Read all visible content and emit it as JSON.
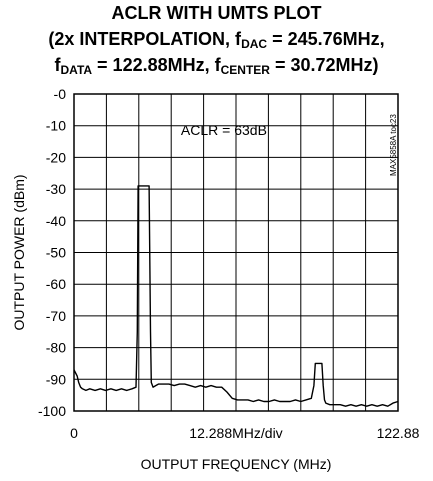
{
  "chart_data": {
    "type": "line",
    "title_lines": [
      [
        "ACLR WITH UMTS PLOT"
      ],
      [
        "(2x INTERPOLATION, f",
        "DAC",
        " = 245.76MHz,"
      ],
      [
        "f",
        "DATA",
        " = 122.88MHz, f",
        "CENTER",
        " = 30.72MHz)"
      ]
    ],
    "xlabel": "OUTPUT FREQUENCY (MHz)",
    "ylabel": "OUTPUT POWER (dBm)",
    "xlim": [
      0,
      122.88
    ],
    "ylim": [
      -100,
      0
    ],
    "x_tick_labels": [
      "0",
      "12.288MHz/div",
      "122.88"
    ],
    "y_tick_labels": [
      "-0",
      "-10",
      "-20",
      "-30",
      "-40",
      "-50",
      "-60",
      "-70",
      "-80",
      "-90",
      "-100"
    ],
    "grid": true,
    "annotation": "ACLR = 63dB",
    "side_label": "MAX5858A toc23",
    "series": [
      {
        "color": "#000000",
        "x": [
          0,
          0.6,
          1.2,
          1.8,
          2.5,
          3.2,
          4.5,
          6,
          8,
          10,
          12,
          14,
          16,
          18,
          20,
          22,
          23.5,
          24,
          24.3,
          25,
          26,
          27.5,
          28.5,
          29,
          29.3,
          30,
          31,
          32,
          34,
          36,
          38,
          40,
          42,
          44,
          46,
          48,
          50,
          52,
          54,
          56,
          58,
          60,
          62,
          64,
          66,
          68,
          70,
          72,
          74,
          76,
          78,
          80,
          82,
          84,
          86,
          88,
          90,
          91,
          91.5,
          92,
          93,
          94,
          94.5,
          95,
          95.5,
          97,
          99,
          101,
          103,
          105,
          107,
          109,
          111,
          113,
          115,
          117,
          119,
          121,
          122.88
        ],
        "y": [
          -87,
          -88,
          -89,
          -91,
          -92.5,
          -93,
          -93.5,
          -93,
          -93.5,
          -93,
          -93.5,
          -93,
          -93.5,
          -93,
          -93.5,
          -93,
          -92.5,
          -75,
          -29,
          -29,
          -29,
          -29,
          -29,
          -75,
          -91,
          -92.5,
          -92,
          -91.5,
          -91.5,
          -91.5,
          -92,
          -91.5,
          -91.5,
          -92,
          -92.5,
          -92,
          -92.5,
          -92,
          -92.5,
          -92.5,
          -94,
          -96,
          -96.5,
          -96.5,
          -96.5,
          -97,
          -96.5,
          -97,
          -97,
          -96.5,
          -97,
          -97,
          -97,
          -96.5,
          -97,
          -96.5,
          -96,
          -92,
          -85,
          -85,
          -85,
          -85,
          -92,
          -96.5,
          -97.5,
          -98,
          -98,
          -98,
          -98.5,
          -98,
          -98.5,
          -98,
          -98.5,
          -98,
          -98.5,
          -98,
          -98.5,
          -97.5,
          -97
        ]
      }
    ]
  }
}
